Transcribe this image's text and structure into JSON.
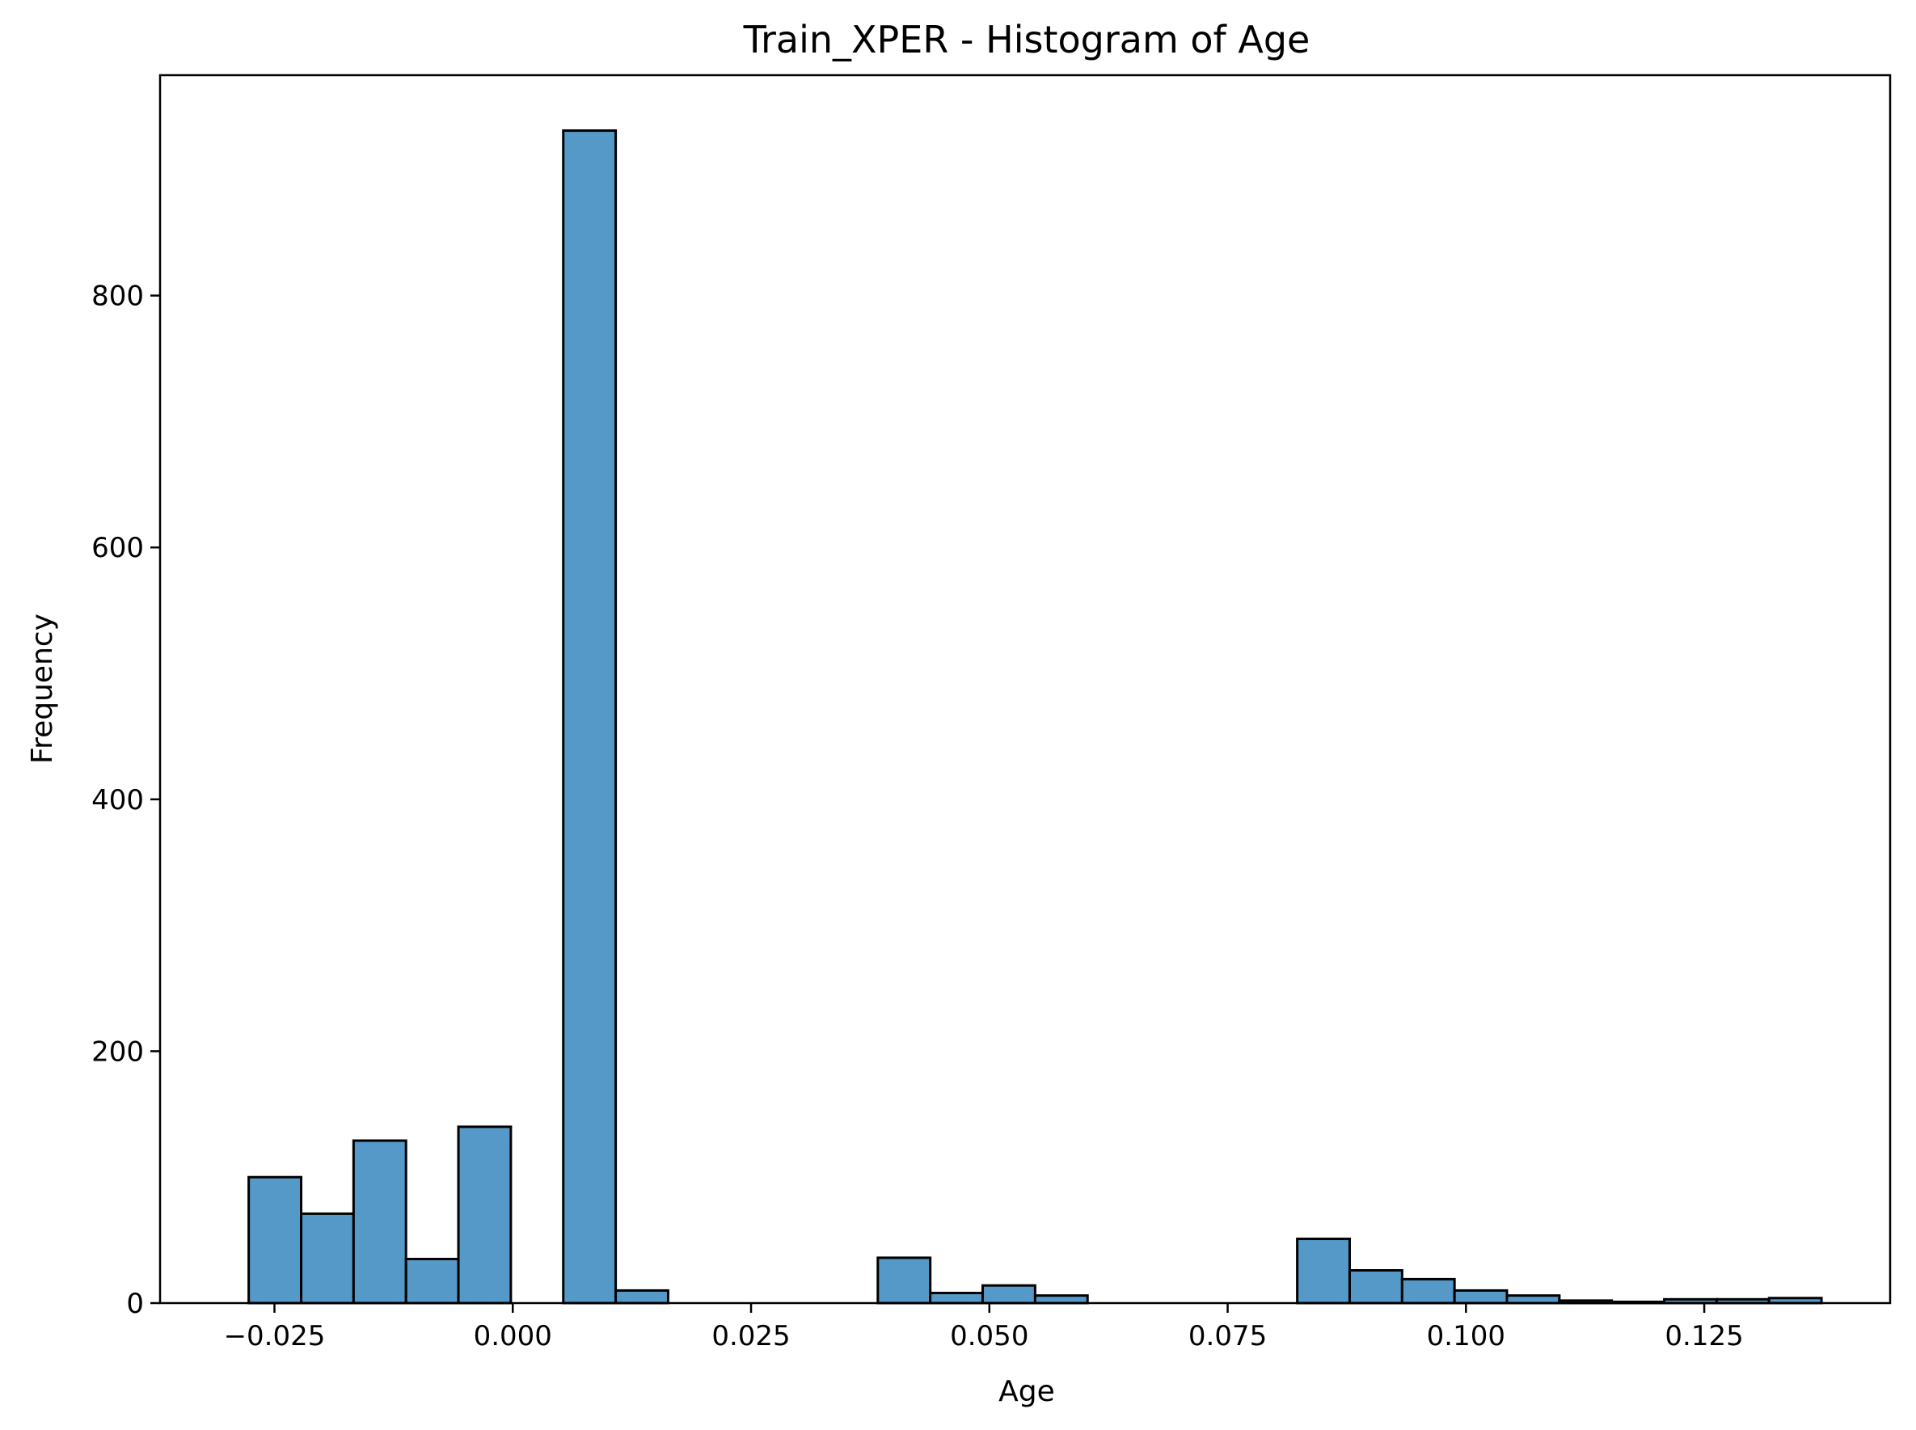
{
  "chart_data": {
    "type": "bar",
    "title": "Train_XPER - Histogram of Age",
    "xlabel": "Age",
    "ylabel": "Frequency",
    "xlim": [
      -0.037,
      0.1445
    ],
    "ylim": [
      0,
      975
    ],
    "xticks": [
      -0.025,
      0.0,
      0.025,
      0.05,
      0.075,
      0.1,
      0.125
    ],
    "xtick_labels": [
      "−0.025",
      "0.000",
      "0.025",
      "0.050",
      "0.075",
      "0.100",
      "0.125"
    ],
    "yticks": [
      0,
      200,
      400,
      600,
      800
    ],
    "ytick_labels": [
      "0",
      "200",
      "400",
      "600",
      "800"
    ],
    "bin_edges": [
      -0.0277,
      -0.0222,
      -0.0167,
      -0.0112,
      -0.0057,
      -0.0002,
      0.0053,
      0.0108,
      0.0163,
      0.0218,
      0.0273,
      0.0328,
      0.0383,
      0.0438,
      0.0493,
      0.0548,
      0.0603,
      0.0658,
      0.0713,
      0.0768,
      0.0823,
      0.0878,
      0.0933,
      0.0988,
      0.1043,
      0.1098,
      0.1153,
      0.1208,
      0.1263,
      0.1318,
      0.1373
    ],
    "counts": [
      100,
      71,
      129,
      35,
      140,
      0,
      931,
      10,
      0,
      0,
      0,
      0,
      36,
      8,
      14,
      6,
      0,
      0,
      0,
      0,
      51,
      26,
      19,
      10,
      6,
      2,
      1,
      3,
      3,
      4
    ],
    "bar_color": "#5499c7",
    "edge_color": "#000000",
    "grid": false
  }
}
